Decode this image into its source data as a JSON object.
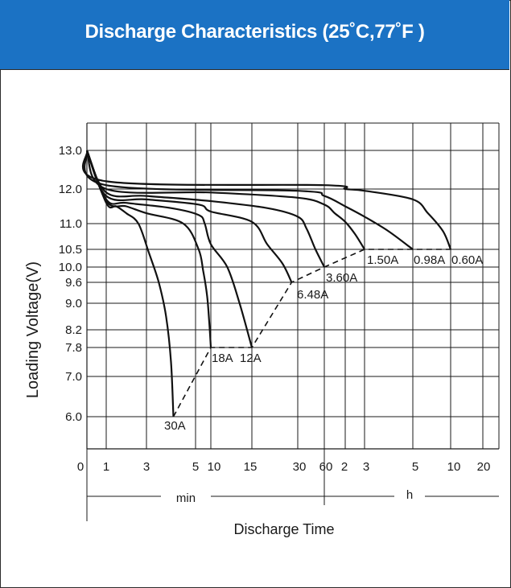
{
  "header": {
    "title": "Discharge Characteristics (25˚C,77˚F )"
  },
  "chart_data": {
    "type": "line",
    "title": "Discharge Characteristics (25˚C,77˚F )",
    "xlabel": "Discharge Time",
    "ylabel": "Loading  Voltage(V)",
    "x_unit_labels": {
      "min": "min",
      "h": "h"
    },
    "x_tick_labels": [
      "0",
      "1",
      "3",
      "5",
      "10",
      "15",
      "30",
      "60",
      "2",
      "3",
      "5",
      "10",
      "20"
    ],
    "y_tick_labels": [
      "13.0",
      "12.0",
      "11.0",
      "10.5",
      "10.0",
      "9.6",
      "9.0",
      "8.2",
      "7.8",
      "7.0",
      "6.0"
    ],
    "y_scale": "non-uniform (as printed)",
    "grid": true,
    "series": [
      {
        "name": "30A",
        "x_minutes": [
          0,
          1,
          1.5,
          2,
          2.6,
          3.1,
          3.5,
          3.8,
          4.0,
          4.1
        ],
        "values": [
          13.0,
          11.6,
          11.5,
          11.3,
          11.0,
          10.4,
          9.6,
          8.6,
          7.4,
          6.0
        ],
        "end_label_value": 6.0
      },
      {
        "name": "18A",
        "x_minutes": [
          0,
          1,
          2,
          3,
          4.5,
          6,
          7.5,
          8.8,
          9.5,
          10
        ],
        "values": [
          13.0,
          11.65,
          11.5,
          11.3,
          11.0,
          10.5,
          9.9,
          9.2,
          8.4,
          7.8
        ],
        "end_label_value": 7.8
      },
      {
        "name": "12A",
        "x_minutes": [
          0,
          1,
          2,
          4,
          6,
          8,
          10,
          12,
          13.5,
          15
        ],
        "values": [
          13.0,
          11.7,
          11.6,
          11.45,
          11.25,
          11.0,
          10.6,
          10.0,
          9.0,
          7.8
        ],
        "end_label_value": 7.8
      },
      {
        "name": "6.48A",
        "x_minutes": [
          0,
          1,
          3,
          6,
          10,
          15,
          20,
          25,
          28
        ],
        "values": [
          13.0,
          11.8,
          11.7,
          11.55,
          11.35,
          11.05,
          10.6,
          10.1,
          9.6
        ],
        "end_label_value": 9.6
      },
      {
        "name": "3.60A",
        "x_minutes": [
          0,
          1,
          3,
          10,
          20,
          30,
          40,
          50,
          60
        ],
        "values": [
          13.0,
          11.9,
          11.8,
          11.65,
          11.45,
          11.2,
          10.9,
          10.5,
          10.0
        ],
        "end_label_value": 10.0
      },
      {
        "name": "1.50A",
        "x_minutes": [
          0,
          1,
          10,
          30,
          60,
          90,
          120,
          150,
          180
        ],
        "values": [
          13.0,
          12.0,
          11.9,
          11.75,
          11.55,
          11.3,
          11.05,
          10.8,
          10.5
        ],
        "end_label_value": 10.5
      },
      {
        "name": "0.98A",
        "x_minutes": [
          0,
          1,
          30,
          60,
          120,
          180,
          240,
          300
        ],
        "values": [
          13.0,
          12.1,
          11.95,
          11.8,
          11.5,
          11.2,
          10.85,
          10.5
        ],
        "end_label_value": 10.5
      },
      {
        "name": "0.60A",
        "x_minutes": [
          0,
          1,
          60,
          120,
          180,
          300,
          420,
          540,
          600
        ],
        "values": [
          13.0,
          12.2,
          12.1,
          12.0,
          11.95,
          11.7,
          11.3,
          10.85,
          10.5
        ],
        "end_label_value": 10.5
      }
    ],
    "end_voltage_line": {
      "x_minutes": [
        4.1,
        10,
        15,
        28,
        60,
        180,
        300,
        600
      ],
      "values": [
        6.0,
        7.8,
        7.8,
        9.6,
        10.0,
        10.5,
        10.5,
        10.5
      ]
    }
  }
}
